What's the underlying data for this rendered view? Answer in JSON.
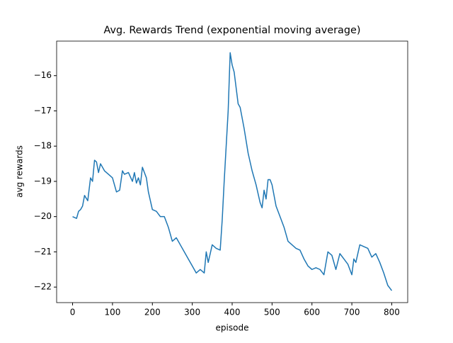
{
  "chart_data": {
    "type": "line",
    "title": "Avg. Rewards Trend (exponential moving average)",
    "x_label": "episode",
    "y_label": "avg rewards",
    "x": [
      0,
      10,
      15,
      20,
      25,
      30,
      38,
      45,
      50,
      55,
      60,
      65,
      70,
      80,
      90,
      100,
      110,
      118,
      125,
      130,
      140,
      150,
      155,
      160,
      165,
      170,
      175,
      185,
      190,
      200,
      210,
      220,
      230,
      240,
      250,
      260,
      270,
      280,
      290,
      300,
      310,
      320,
      330,
      335,
      340,
      350,
      360,
      370,
      375,
      380,
      390,
      395,
      400,
      405,
      415,
      420,
      430,
      440,
      450,
      460,
      470,
      475,
      480,
      485,
      490,
      495,
      500,
      510,
      520,
      530,
      540,
      550,
      560,
      570,
      580,
      590,
      600,
      610,
      620,
      630,
      640,
      650,
      660,
      670,
      680,
      690,
      700,
      705,
      710,
      720,
      730,
      740,
      750,
      760,
      770,
      780,
      790,
      800
    ],
    "series": [
      {
        "name": "avg rewards",
        "color": "#1f77b4",
        "values": [
          -20.0,
          -20.05,
          -19.85,
          -19.8,
          -19.7,
          -19.4,
          -19.55,
          -18.9,
          -19.0,
          -18.4,
          -18.45,
          -18.75,
          -18.5,
          -18.7,
          -18.8,
          -18.9,
          -19.3,
          -19.25,
          -18.7,
          -18.8,
          -18.75,
          -19.0,
          -18.75,
          -19.05,
          -18.9,
          -19.1,
          -18.6,
          -18.9,
          -19.3,
          -19.8,
          -19.85,
          -20.0,
          -20.0,
          -20.3,
          -20.7,
          -20.6,
          -20.8,
          -21.0,
          -21.2,
          -21.4,
          -21.6,
          -21.5,
          -21.6,
          -21.0,
          -21.3,
          -20.8,
          -20.9,
          -20.95,
          -20.1,
          -19.0,
          -17.0,
          -15.35,
          -15.7,
          -15.9,
          -16.8,
          -16.9,
          -17.5,
          -18.2,
          -18.7,
          -19.1,
          -19.6,
          -19.75,
          -19.25,
          -19.5,
          -18.95,
          -18.95,
          -19.1,
          -19.7,
          -20.0,
          -20.3,
          -20.7,
          -20.8,
          -20.9,
          -20.95,
          -21.2,
          -21.4,
          -21.5,
          -21.45,
          -21.5,
          -21.65,
          -21.0,
          -21.1,
          -21.5,
          -21.05,
          -21.2,
          -21.35,
          -21.65,
          -21.2,
          -21.3,
          -20.8,
          -20.85,
          -20.9,
          -21.15,
          -21.05,
          -21.3,
          -21.6,
          -21.95,
          -22.1
        ]
      }
    ],
    "xlim": [
      -40,
      840
    ],
    "xticks": [
      0,
      100,
      200,
      300,
      400,
      500,
      600,
      700,
      800
    ],
    "ylim": [
      -22.44,
      -15.02
    ],
    "yticks": [
      {
        "value": -22,
        "label": "−22"
      },
      {
        "value": -21,
        "label": "−21"
      },
      {
        "value": -20,
        "label": "−20"
      },
      {
        "value": -19,
        "label": "−19"
      },
      {
        "value": -18,
        "label": "−18"
      },
      {
        "value": -17,
        "label": "−17"
      },
      {
        "value": -16,
        "label": "−16"
      }
    ],
    "grid": false
  }
}
